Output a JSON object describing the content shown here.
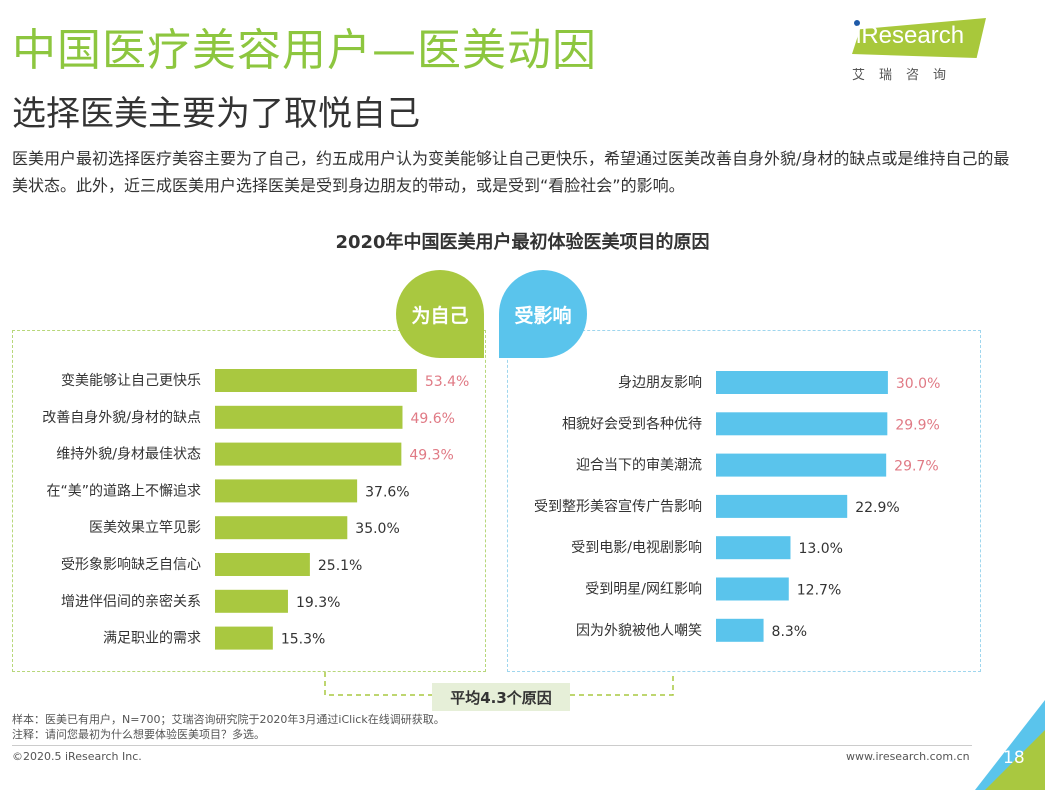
{
  "header": {
    "title": "中国医疗美容用户—医美动因",
    "subtitle": "选择医美主要为了取悦自己",
    "description": "医美用户最初选择医疗美容主要为了自己，约五成用户认为变美能够让自己更快乐，希望通过医美改善自身外貌/身材的缺点或是维持自己的最美状态。此外，近三成医美用户选择医美是受到身边朋友的带动，或是受到“看脸社会”的影响。"
  },
  "logo": {
    "brand": "iResearch",
    "brand_cn": "艾瑞咨询"
  },
  "colors": {
    "green": "#a9c840",
    "blue": "#5ac4ec",
    "highlight_label": "#e07a85",
    "normal_label": "#333333"
  },
  "chart_data": {
    "type": "bar",
    "title": "2020年中国医美用户最初体验医美项目的原因",
    "orientation": "horizontal",
    "unit": "%",
    "panels": [
      {
        "name": "为自己",
        "categories": [
          "变美能够让自己更快乐",
          "改善自身外貌/身材的缺点",
          "维持外貌/身材最佳状态",
          "在“美”的道路上不懈追求",
          "医美效果立竿见影",
          "受形象影响缺乏自信心",
          "增进伴侣间的亲密关系",
          "满足职业的需求"
        ],
        "values": [
          53.4,
          49.6,
          49.3,
          37.6,
          35.0,
          25.1,
          19.3,
          15.3
        ],
        "labels": [
          "53.4%",
          "49.6%",
          "49.3%",
          "37.6%",
          "35.0%",
          "25.1%",
          "19.3%",
          "15.3%"
        ],
        "highlighted": [
          true,
          true,
          true,
          false,
          false,
          false,
          false,
          false
        ],
        "color": "#a9c840"
      },
      {
        "name": "受影响",
        "categories": [
          "身边朋友影响",
          "相貌好会受到各种优待",
          "迎合当下的审美潮流",
          "受到整形美容宣传广告影响",
          "受到电影/电视剧影响",
          "受到明星/网红影响",
          "因为外貌被他人嘲笑"
        ],
        "values": [
          30.0,
          29.9,
          29.7,
          22.9,
          13.0,
          12.7,
          8.3
        ],
        "labels": [
          "30.0%",
          "29.9%",
          "29.7%",
          "22.9%",
          "13.0%",
          "12.7%",
          "8.3%"
        ],
        "highlighted": [
          true,
          true,
          true,
          false,
          false,
          false,
          false
        ],
        "color": "#5ac4ec"
      }
    ],
    "annotation": "平均4.3个原因"
  },
  "footer": {
    "note_sample": "样本：医美已有用户，N=700；艾瑞咨询研究院于2020年3月通过iClick在线调研获取。",
    "note_question": "注释：请问您最初为什么想要体验医美项目？多选。",
    "copyright": "©2020.5 iResearch Inc.",
    "website": "www.iresearch.com.cn",
    "page_number": "18"
  }
}
